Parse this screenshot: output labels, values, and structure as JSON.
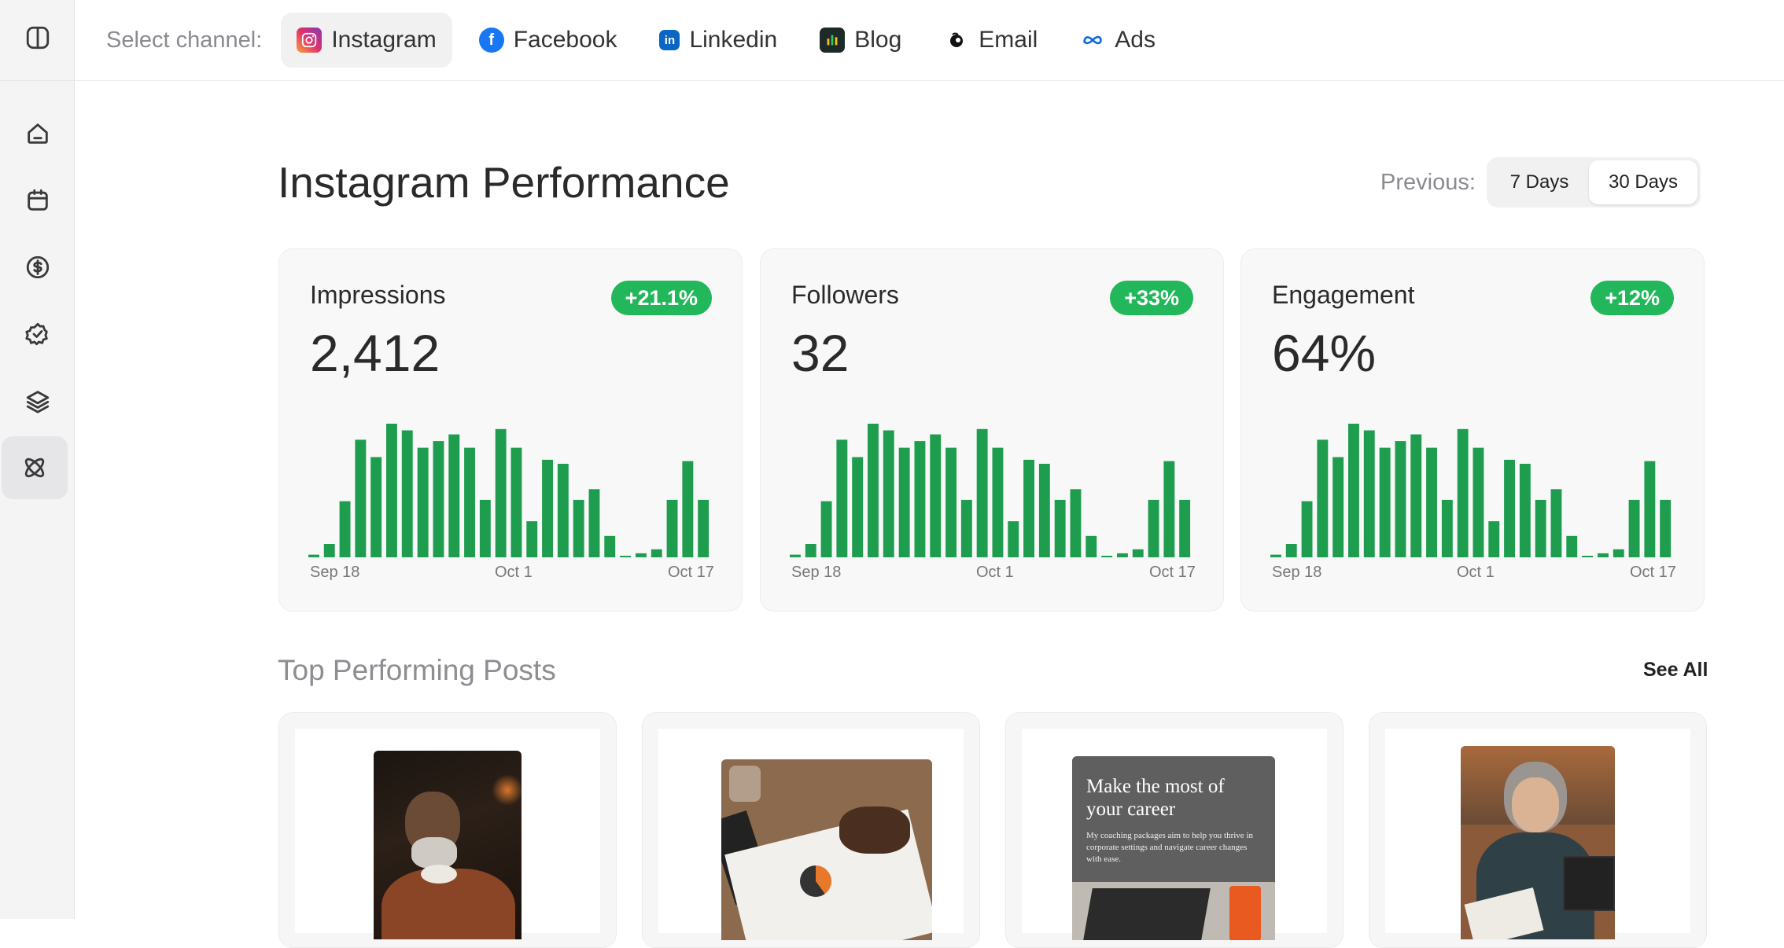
{
  "topbar": {
    "select_label": "Select channel:",
    "channels": [
      {
        "label": "Instagram",
        "icon": "instagram-icon",
        "active": true
      },
      {
        "label": "Facebook",
        "icon": "facebook-icon"
      },
      {
        "label": "Linkedin",
        "icon": "linkedin-icon"
      },
      {
        "label": "Blog",
        "icon": "blog-icon"
      },
      {
        "label": "Email",
        "icon": "email-icon"
      },
      {
        "label": "Ads",
        "icon": "meta-icon"
      }
    ]
  },
  "sidebar": {
    "items": [
      "panel-toggle-icon",
      "home-icon",
      "calendar-icon",
      "dollar-icon",
      "check-badge-icon",
      "layers-icon",
      "atom-icon"
    ],
    "active": "atom-icon"
  },
  "main": {
    "title": "Instagram Performance",
    "previous_label": "Previous:",
    "range_options": [
      "7 Days",
      "30 Days"
    ],
    "selected_range": "30 Days"
  },
  "colors": {
    "accent_green": "#22b75a",
    "bar_green": "#1f9d4e"
  },
  "chart_data": [
    {
      "type": "bar",
      "title": "Impressions",
      "metric": "2,412",
      "change": "+21.1%",
      "x_tick_labels": [
        "Sep 18",
        "Oct 1",
        "Oct 17"
      ],
      "values": [
        2,
        10,
        42,
        88,
        75,
        100,
        95,
        82,
        87,
        92,
        82,
        43,
        96,
        82,
        27,
        73,
        70,
        43,
        51,
        16,
        1,
        3,
        6,
        43,
        72,
        43
      ]
    },
    {
      "type": "bar",
      "title": "Followers",
      "metric": "32",
      "change": "+33%",
      "x_tick_labels": [
        "Sep 18",
        "Oct 1",
        "Oct 17"
      ],
      "values": [
        2,
        10,
        42,
        88,
        75,
        100,
        95,
        82,
        87,
        92,
        82,
        43,
        96,
        82,
        27,
        73,
        70,
        43,
        51,
        16,
        1,
        3,
        6,
        43,
        72,
        43
      ]
    },
    {
      "type": "bar",
      "title": "Engagement",
      "metric": "64%",
      "change": "+12%",
      "x_tick_labels": [
        "Sep 18",
        "Oct 1",
        "Oct 17"
      ],
      "values": [
        2,
        10,
        42,
        88,
        75,
        100,
        95,
        82,
        87,
        92,
        82,
        43,
        96,
        82,
        27,
        73,
        70,
        43,
        51,
        16,
        1,
        3,
        6,
        43,
        72,
        43
      ]
    }
  ],
  "posts": {
    "section_title": "Top Performing Posts",
    "see_all": "See All",
    "items": [
      {
        "alt": "man-reading-photo"
      },
      {
        "alt": "hands-writing-notebook-photo"
      },
      {
        "alt": "career-coaching-graphic",
        "headline": "Make the most of your career",
        "body": "My coaching packages aim to help you thrive in corporate settings and navigate career changes with ease."
      },
      {
        "alt": "woman-laptop-photo"
      }
    ]
  }
}
